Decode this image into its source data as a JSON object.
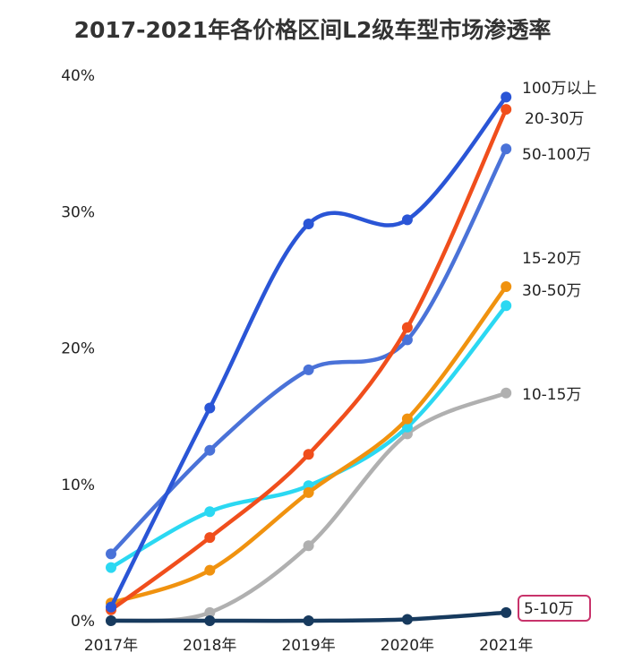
{
  "chart_data": {
    "type": "line",
    "title": "2017-2021年各价格区间L2级车型市场渗透率",
    "xlabel": "",
    "ylabel": "",
    "categories": [
      "2017年",
      "2018年",
      "2019年",
      "2020年",
      "2021年"
    ],
    "y_ticks": [
      "0%",
      "10%",
      "20%",
      "30%",
      "40%"
    ],
    "ylim": [
      0,
      40
    ],
    "grid": false,
    "legend": "end-of-line labels on right",
    "series": [
      {
        "name": "10-15万",
        "color": "#b0b0b0",
        "values": [
          0,
          0.6,
          5.5,
          13.7,
          16.7
        ]
      },
      {
        "name": "5-10万",
        "color": "#173a5e",
        "values": [
          0,
          0,
          0,
          0.1,
          0.6
        ],
        "highlighted": true
      },
      {
        "name": "15-20万",
        "color": "#2bd8f2",
        "values": [
          3.9,
          8.0,
          9.9,
          14.2,
          23.1
        ]
      },
      {
        "name": "30-50万",
        "color": "#f0920f",
        "values": [
          1.3,
          3.7,
          9.4,
          14.8,
          24.5
        ]
      },
      {
        "name": "50-100万",
        "color": "#4a72d8",
        "values": [
          4.9,
          12.5,
          18.4,
          20.6,
          34.6
        ]
      },
      {
        "name": "20-30万",
        "color": "#f04e1c",
        "values": [
          0.8,
          6.1,
          12.2,
          21.5,
          37.5
        ]
      },
      {
        "name": "100万以上",
        "color": "#2a55d6",
        "values": [
          1.0,
          15.6,
          29.1,
          29.4,
          38.4
        ]
      }
    ],
    "highlight_color": "#c8336b"
  }
}
